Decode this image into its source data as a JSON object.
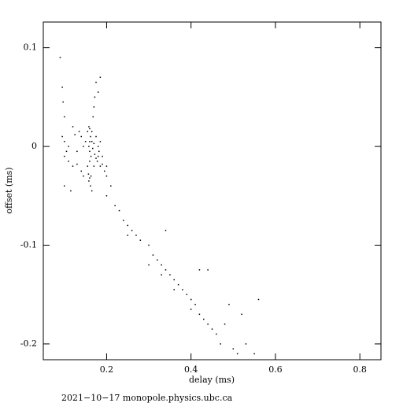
{
  "chart_data": {
    "type": "scatter",
    "xlabel": "delay (ms)",
    "ylabel": "offset (ms)",
    "footer": "2021−10−17  monopole.physics.ubc.ca",
    "color": "#000000",
    "xlim": [
      0.05,
      0.85
    ],
    "xticks": [
      0.2,
      0.4,
      0.6,
      0.8
    ],
    "ylim": [
      -0.216,
      0.126
    ],
    "yticks": [
      -0.2,
      -0.1,
      0,
      0.1
    ],
    "x": [
      0.09,
      0.095,
      0.097,
      0.1,
      0.095,
      0.1,
      0.105,
      0.1,
      0.11,
      0.12,
      0.13,
      0.125,
      0.135,
      0.14,
      0.145,
      0.15,
      0.155,
      0.158,
      0.16,
      0.162,
      0.165,
      0.158,
      0.16,
      0.163,
      0.167,
      0.17,
      0.172,
      0.175,
      0.178,
      0.18,
      0.182,
      0.185,
      0.19,
      0.16,
      0.155,
      0.157,
      0.16,
      0.163,
      0.158,
      0.162,
      0.165,
      0.168,
      0.17,
      0.172,
      0.175,
      0.185,
      0.18,
      0.195,
      0.2,
      0.21,
      0.2,
      0.22,
      0.23,
      0.24,
      0.25,
      0.26,
      0.27,
      0.25,
      0.28,
      0.3,
      0.31,
      0.3,
      0.32,
      0.33,
      0.34,
      0.35,
      0.33,
      0.36,
      0.34,
      0.37,
      0.38,
      0.36,
      0.39,
      0.4,
      0.41,
      0.4,
      0.42,
      0.43,
      0.44,
      0.45,
      0.42,
      0.44,
      0.46,
      0.47,
      0.48,
      0.49,
      0.5,
      0.51,
      0.52,
      0.53,
      0.55,
      0.56,
      0.115,
      0.1,
      0.12,
      0.11,
      0.13,
      0.14,
      0.145,
      0.17,
      0.18,
      0.185,
      0.19,
      0.2,
      0.175,
      0.165,
      0.16
    ],
    "values": [
      0.09,
      0.06,
      0.045,
      0.03,
      0.01,
      0.005,
      -0.005,
      -0.01,
      -0.015,
      -0.02,
      -0.018,
      0.012,
      0.015,
      0.01,
      0.0,
      0.005,
      0.015,
      0.02,
      0.018,
      0.01,
      0.005,
      0.0,
      -0.005,
      -0.01,
      -0.002,
      0.003,
      -0.008,
      -0.012,
      -0.015,
      -0.01,
      -0.005,
      -0.02,
      -0.018,
      -0.015,
      -0.02,
      -0.028,
      -0.032,
      -0.03,
      -0.035,
      -0.04,
      -0.045,
      0.03,
      0.04,
      0.05,
      0.065,
      0.07,
      0.055,
      -0.025,
      -0.03,
      -0.04,
      -0.05,
      -0.06,
      -0.065,
      -0.075,
      -0.08,
      -0.085,
      -0.09,
      -0.09,
      -0.095,
      -0.1,
      -0.11,
      -0.12,
      -0.115,
      -0.12,
      -0.125,
      -0.13,
      -0.13,
      -0.135,
      -0.085,
      -0.14,
      -0.145,
      -0.145,
      -0.15,
      -0.155,
      -0.16,
      -0.165,
      -0.17,
      -0.175,
      -0.18,
      -0.185,
      -0.125,
      -0.125,
      -0.19,
      -0.2,
      -0.18,
      -0.16,
      -0.205,
      -0.21,
      -0.17,
      -0.2,
      -0.21,
      -0.155,
      -0.045,
      -0.04,
      0.02,
      0.0,
      -0.005,
      -0.025,
      -0.03,
      -0.02,
      0.0,
      0.005,
      -0.01,
      -0.02,
      0.01,
      0.015,
      0.005
    ]
  }
}
